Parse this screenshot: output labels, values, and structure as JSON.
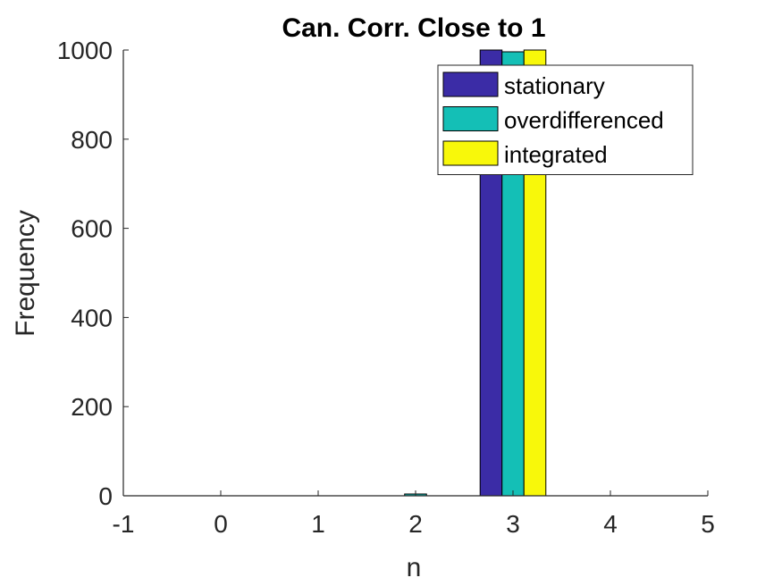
{
  "chart_data": {
    "type": "bar",
    "title": "Can. Corr. Close to 1",
    "xlabel": "n",
    "ylabel": "Frequency",
    "categories": [
      0,
      1,
      2,
      3,
      4
    ],
    "xlim": [
      -1,
      5
    ],
    "ylim": [
      0,
      1000
    ],
    "xticks": [
      "-1",
      "0",
      "1",
      "2",
      "3",
      "4",
      "5"
    ],
    "yticks": [
      "0",
      "200",
      "400",
      "600",
      "800",
      "1000"
    ],
    "grid": false,
    "legend_position": "top-right",
    "series": [
      {
        "name": "stationary",
        "color": "#3b2ca6",
        "values": [
          0,
          0,
          0,
          1000,
          0
        ]
      },
      {
        "name": "overdifferenced",
        "color": "#14bfb6",
        "values": [
          0,
          0,
          4,
          996,
          0
        ]
      },
      {
        "name": "integrated",
        "color": "#f8f80a",
        "values": [
          0,
          0,
          0,
          1000,
          0
        ]
      }
    ]
  }
}
